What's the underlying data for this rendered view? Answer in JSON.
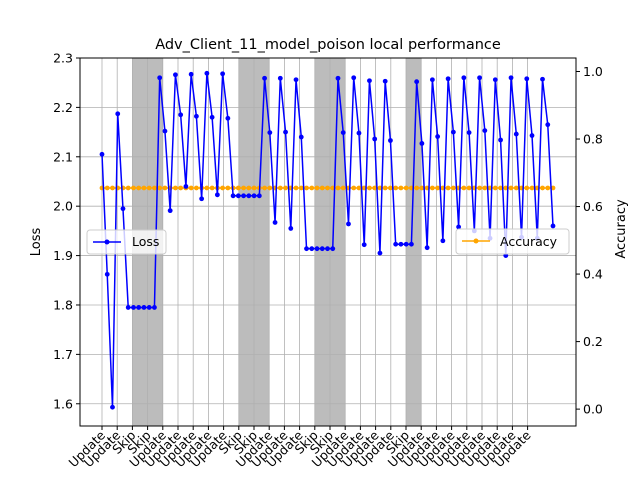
{
  "chart_data": {
    "type": "line",
    "title": "Adv_Client_11_model_poison local performance",
    "ylabel_left": "Loss",
    "ylabel_right": "Accuracy",
    "ylim_left": [
      1.555,
      2.3
    ],
    "ylim_right": [
      -0.05,
      1.04
    ],
    "yticks_left": [
      "1.6",
      "1.7",
      "1.8",
      "1.9",
      "2.0",
      "2.1",
      "2.2",
      "2.3"
    ],
    "yticks_right": [
      "0.0",
      "0.2",
      "0.4",
      "0.6",
      "0.8",
      "1.0"
    ],
    "grid": true,
    "x_tick_labels": [
      "Update",
      "Update",
      "Skip",
      "Skip",
      "Update",
      "Update",
      "Update",
      "Update",
      "Update",
      "Skip",
      "Skip",
      "Update",
      "Update",
      "Update",
      "Skip",
      "Skip",
      "Update",
      "Update",
      "Update",
      "Update",
      "Skip",
      "Update",
      "Update",
      "Update",
      "Update",
      "Update",
      "Update",
      "Update",
      "Update"
    ],
    "skip_regions": [
      [
        2,
        3
      ],
      [
        9,
        10
      ],
      [
        14,
        15
      ],
      [
        20,
        20
      ]
    ],
    "loss": {
      "name": "Loss",
      "color": "#0000ff",
      "values": [
        2.105,
        1.862,
        1.593,
        2.187,
        1.995,
        1.795,
        1.795,
        1.795,
        1.795,
        1.795,
        1.795,
        2.26,
        2.152,
        1.991,
        2.266,
        2.185,
        2.04,
        2.267,
        2.182,
        2.015,
        2.269,
        2.18,
        2.023,
        2.268,
        2.178,
        2.021,
        2.021,
        2.021,
        2.021,
        2.021,
        2.021,
        2.259,
        2.149,
        1.967,
        2.259,
        2.15,
        1.955,
        2.256,
        2.14,
        1.914,
        1.914,
        1.914,
        1.914,
        1.914,
        1.914,
        2.259,
        2.149,
        1.964,
        2.26,
        2.148,
        1.922,
        2.254,
        2.136,
        1.905,
        2.253,
        2.133,
        1.923,
        1.923,
        1.923,
        1.923,
        2.252,
        2.127,
        1.916,
        2.256,
        2.141,
        1.93,
        2.258,
        2.15,
        1.958,
        2.26,
        2.149,
        1.95,
        2.26,
        2.153,
        1.935,
        2.256,
        2.134,
        1.9,
        2.26,
        2.146,
        1.937,
        2.258,
        2.143,
        1.935,
        2.257,
        2.165,
        1.96
      ]
    },
    "accuracy": {
      "name": "Accuracy",
      "color": "#ffa500",
      "value": 0.655
    },
    "legend_loss_position": "center-left",
    "legend_accuracy_position": "center-right"
  }
}
